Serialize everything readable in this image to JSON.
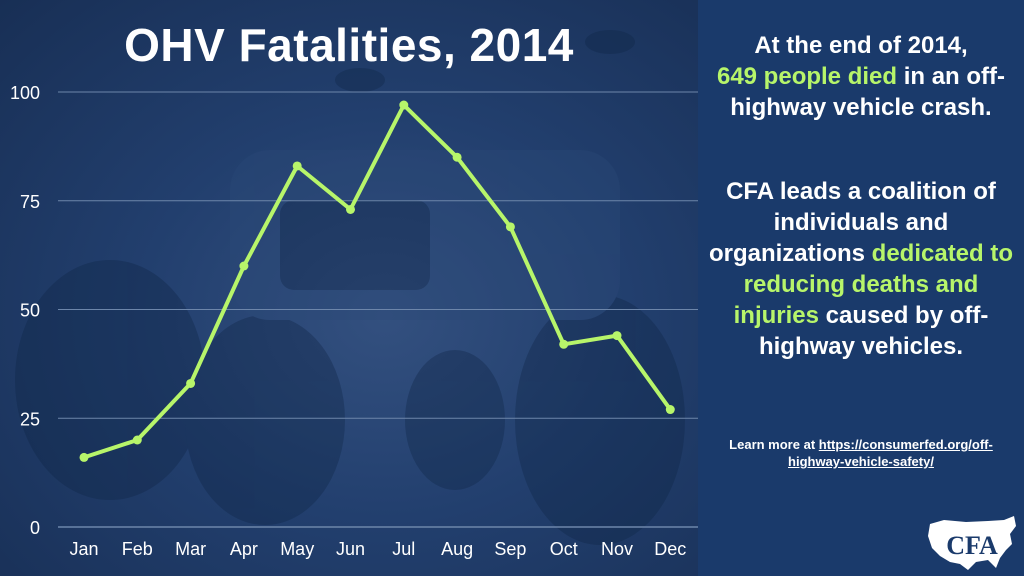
{
  "chart_data": {
    "type": "line",
    "title": "OHV Fatalities, 2014",
    "categories": [
      "Jan",
      "Feb",
      "Mar",
      "Apr",
      "May",
      "Jun",
      "Jul",
      "Aug",
      "Sep",
      "Oct",
      "Nov",
      "Dec"
    ],
    "series": [
      {
        "values": [
          16,
          20,
          33,
          60,
          83,
          73,
          97,
          85,
          69,
          42,
          44,
          27
        ]
      }
    ],
    "ylim": [
      0,
      100
    ],
    "yticks": [
      0,
      25,
      50,
      75,
      100
    ],
    "grid": true,
    "colors": {
      "line": "#b7f56a",
      "grid": "#6d86aa",
      "tick_text": "#ffffff"
    }
  },
  "info": {
    "p1_a": "At the end of 2014,",
    "p1_highlight": "649 people died",
    "p1_b": " in an off-highway vehicle crash.",
    "p2_a": "CFA leads a coalition of individuals and organizations ",
    "p2_highlight": "dedicated to reducing deaths and injuries",
    "p2_b": " caused by off-highway vehicles.",
    "learn_prefix": "Learn more at ",
    "learn_link": "https://consumerfed.org/off-highway-vehicle-safety/",
    "highlight_color": "#b7f56a"
  },
  "logo": {
    "text": "CFA",
    "icon": "us-map-logo-icon"
  }
}
